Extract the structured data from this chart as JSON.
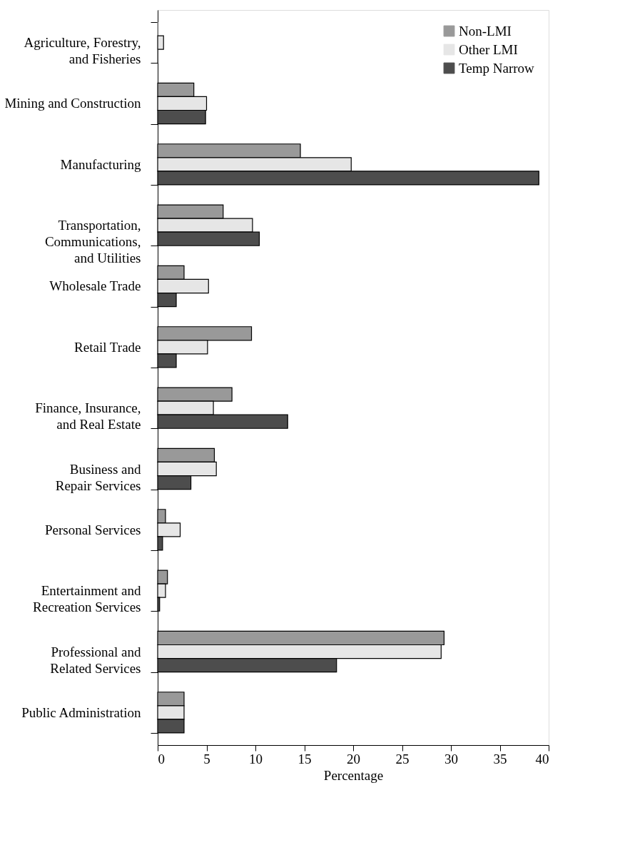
{
  "chart_data": {
    "type": "bar",
    "orientation": "horizontal",
    "xlabel": "Percentage",
    "categories": [
      "Agriculture, Forestry,\nand Fisheries",
      "Mining and Construction",
      "Manufacturing",
      "Transportation,\nCommunications,\nand Utilities",
      "Wholesale Trade",
      "Retail Trade",
      "Finance, Insurance,\nand Real Estate",
      "Business and\nRepair Services",
      "Personal Services",
      "Entertainment and\nRecreation Services",
      "Professional and\nRelated Services",
      "Public Administration"
    ],
    "series": [
      {
        "name": "Non-LMI",
        "color": "#999999",
        "values": [
          0,
          3.7,
          14.6,
          6.7,
          2.7,
          9.6,
          7.6,
          5.8,
          0.8,
          1.0,
          29.3,
          2.7
        ]
      },
      {
        "name": "Other LMI",
        "color": "#e6e6e6",
        "values": [
          0.6,
          5.0,
          19.8,
          9.7,
          5.2,
          5.1,
          5.7,
          6.0,
          2.3,
          0.8,
          29.0,
          2.7
        ]
      },
      {
        "name": "Temp Narrow",
        "color": "#4d4d4d",
        "values": [
          0,
          4.9,
          39.0,
          10.4,
          1.9,
          1.9,
          13.3,
          3.4,
          0.5,
          0.2,
          18.3,
          2.7
        ]
      }
    ],
    "xlim": [
      0,
      40
    ],
    "xticks": [
      0,
      5,
      10,
      15,
      20,
      25,
      30,
      35,
      40
    ],
    "legend": "top right",
    "grid": false
  }
}
